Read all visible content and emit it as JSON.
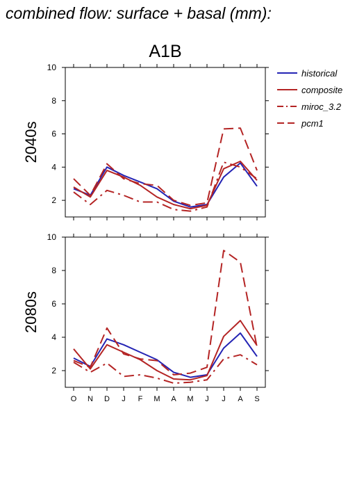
{
  "figure": {
    "title": "combined flow: surface + basal (mm):"
  },
  "chart_data": {
    "type": "line",
    "title": "A1B",
    "categories": [
      "O",
      "N",
      "D",
      "J",
      "F",
      "M",
      "A",
      "M",
      "J",
      "J",
      "A",
      "S"
    ],
    "ylim": [
      1,
      10
    ],
    "yticks": [
      2,
      4,
      6,
      8,
      10
    ],
    "grid": false,
    "legend_position": "top-right",
    "legend": [
      {
        "name": "historical",
        "color": "#2424b4",
        "dash": "solid"
      },
      {
        "name": "composite",
        "color": "#b42424",
        "dash": "solid"
      },
      {
        "name": "miroc_3.2",
        "color": "#b42424",
        "dash": "dashdot"
      },
      {
        "name": "pcm1",
        "color": "#b42424",
        "dash": "dashed"
      }
    ],
    "panels": [
      {
        "label": "2040s",
        "series": [
          {
            "name": "historical",
            "values": [
              2.7,
              2.3,
              4.0,
              3.5,
              3.1,
              2.7,
              1.95,
              1.6,
              1.75,
              3.4,
              4.25,
              2.85
            ]
          },
          {
            "name": "composite",
            "values": [
              2.8,
              2.2,
              3.8,
              3.4,
              2.9,
              2.2,
              1.75,
              1.5,
              1.7,
              3.9,
              4.35,
              3.2
            ]
          },
          {
            "name": "miroc_3.2",
            "values": [
              2.5,
              1.75,
              2.6,
              2.3,
              1.9,
              1.9,
              1.45,
              1.35,
              1.6,
              4.3,
              4.0,
              3.3
            ]
          },
          {
            "name": "pcm1",
            "values": [
              3.3,
              2.3,
              4.2,
              3.3,
              3.0,
              2.9,
              2.0,
              1.7,
              1.85,
              6.3,
              6.35,
              3.8
            ]
          }
        ]
      },
      {
        "label": "2080s",
        "series": [
          {
            "name": "historical",
            "values": [
              2.75,
              2.25,
              3.9,
              3.55,
              3.1,
              2.65,
              1.9,
              1.6,
              1.75,
              3.35,
              4.25,
              2.85
            ]
          },
          {
            "name": "composite",
            "values": [
              3.3,
              2.1,
              3.55,
              3.1,
              2.65,
              2.0,
              1.5,
              1.45,
              1.7,
              4.05,
              5.0,
              3.5
            ]
          },
          {
            "name": "miroc_3.2",
            "values": [
              2.5,
              1.9,
              2.45,
              1.65,
              1.75,
              1.55,
              1.25,
              1.3,
              1.45,
              2.7,
              2.95,
              2.35
            ]
          },
          {
            "name": "pcm1",
            "values": [
              2.6,
              2.2,
              4.55,
              3.0,
              2.7,
              2.6,
              1.75,
              1.85,
              2.2,
              9.2,
              8.5,
              3.4
            ]
          }
        ]
      }
    ]
  }
}
